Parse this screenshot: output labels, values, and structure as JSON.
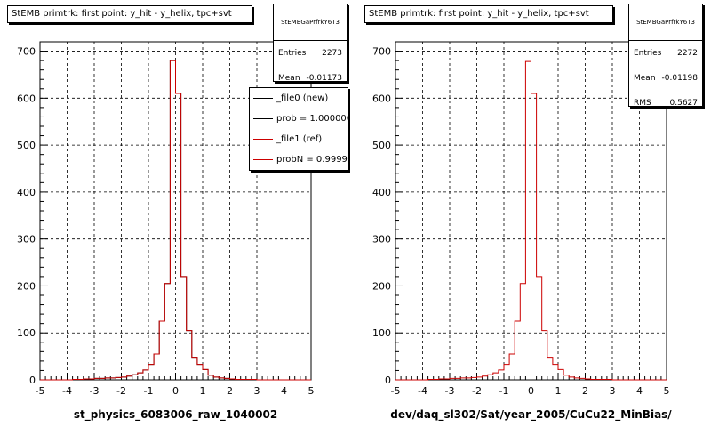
{
  "footer": {
    "datestamp": ""
  },
  "panels": [
    {
      "title": "StEMB primtrk: first point: y_hit - y_helix, tpc+svt",
      "stats": {
        "name": "StEMBGaPrfrkY6T3",
        "rows": [
          {
            "label": "Entries",
            "value": "2273"
          },
          {
            "label": "Mean",
            "value": "-0.01173"
          }
        ]
      },
      "legend": [
        {
          "label": "_file0 (new)",
          "color": "#000000"
        },
        {
          "label": "prob = 1.000000",
          "color": "#000000"
        },
        {
          "label": "_file1 (ref)",
          "color": "#cc0000"
        },
        {
          "label": "probN = 0.999932",
          "color": "#cc0000"
        }
      ]
    },
    {
      "title": "StEMB primtrk: first point: y_hit - y_helix, tpc+svt",
      "stats": {
        "name": "StEMBGaPrfrkY6T3",
        "rows": [
          {
            "label": "Entries",
            "value": "2272"
          },
          {
            "label": "Mean",
            "value": "-0.01198"
          },
          {
            "label": "RMS",
            "value": "0.5627"
          }
        ]
      },
      "legend": []
    }
  ],
  "chart_data": [
    {
      "type": "histogram",
      "title": "StEMB primtrk: first point: y_hit - y_helix, tpc+svt",
      "xlabel": "st_physics_6083006_raw_1040002",
      "ylabel": "",
      "xlim": [
        -5,
        5
      ],
      "ylim": [
        0,
        720
      ],
      "grid": true,
      "x_ticks": [
        "-5",
        "-4",
        "-3",
        "-2",
        "-1",
        "0",
        "1",
        "2",
        "3",
        "4",
        "5"
      ],
      "y_ticks": [
        "0",
        "100",
        "200",
        "300",
        "400",
        "500",
        "600",
        "700"
      ],
      "bin_edges_start": -5,
      "bin_width": 0.2,
      "series": [
        {
          "name": "_file0 (new)",
          "color": "#000000",
          "values": [
            0,
            0,
            0,
            0,
            0,
            0,
            1,
            1,
            2,
            2,
            3,
            3,
            4,
            4,
            5,
            6,
            8,
            11,
            15,
            21,
            33,
            55,
            125,
            205,
            680,
            610,
            220,
            105,
            48,
            33,
            22,
            10,
            6,
            4,
            3,
            2,
            1,
            1,
            1,
            1,
            0,
            0,
            0,
            0,
            0,
            0,
            0,
            0,
            0,
            0
          ]
        },
        {
          "name": "_file1 (ref)",
          "color": "#cc0000",
          "values": [
            0,
            0,
            0,
            0,
            0,
            0,
            1,
            1,
            2,
            2,
            3,
            3,
            4,
            4,
            5,
            6,
            8,
            11,
            15,
            21,
            33,
            55,
            125,
            205,
            680,
            610,
            220,
            105,
            48,
            33,
            22,
            10,
            6,
            4,
            3,
            2,
            1,
            1,
            1,
            1,
            0,
            0,
            0,
            0,
            0,
            0,
            0,
            0,
            0,
            0
          ]
        }
      ]
    },
    {
      "type": "histogram",
      "title": "StEMB primtrk: first point: y_hit - y_helix, tpc+svt",
      "xlabel": "dev/daq_sl302/Sat/year_2005/CuCu22_MinBias/",
      "ylabel": "",
      "xlim": [
        -5,
        5
      ],
      "ylim": [
        0,
        720
      ],
      "grid": true,
      "x_ticks": [
        "-5",
        "-4",
        "-3",
        "-2",
        "-1",
        "0",
        "1",
        "2",
        "3",
        "4",
        "5"
      ],
      "y_ticks": [
        "0",
        "100",
        "200",
        "300",
        "400",
        "500",
        "600",
        "700"
      ],
      "bin_edges_start": -5,
      "bin_width": 0.2,
      "series": [
        {
          "name": "",
          "color": "#cc0000",
          "values": [
            0,
            0,
            0,
            0,
            0,
            0,
            1,
            1,
            2,
            2,
            3,
            3,
            4,
            4,
            5,
            6,
            8,
            11,
            15,
            21,
            33,
            55,
            125,
            205,
            678,
            610,
            220,
            105,
            48,
            33,
            22,
            10,
            6,
            4,
            3,
            2,
            1,
            1,
            1,
            1,
            0,
            0,
            0,
            0,
            0,
            0,
            0,
            0,
            0,
            0
          ]
        }
      ]
    }
  ]
}
